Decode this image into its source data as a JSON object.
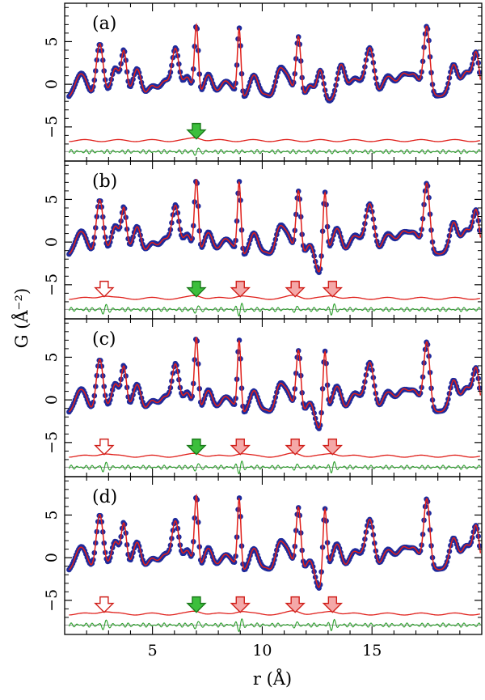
{
  "chart_data": {
    "type": "line",
    "xlabel": "r (Å)",
    "ylabel": "G (Å⁻²)",
    "xlim": [
      1.0,
      20.0
    ],
    "ylim": [
      -9.0,
      9.5
    ],
    "x_ticks": [
      5,
      10,
      15
    ],
    "y_ticks": [
      -5,
      0,
      5
    ],
    "grid": false,
    "series_styles": [
      {
        "role": "observed",
        "color": "#1f2a9c",
        "marker": "circle"
      },
      {
        "role": "calculated",
        "color": "#e0201b",
        "marker": "none"
      },
      {
        "role": "difference",
        "color": "#e0201b",
        "marker": "none"
      },
      {
        "role": "residual",
        "color": "#2ca02c",
        "marker": "none"
      }
    ],
    "panels": [
      {
        "label": "(a)",
        "features": [
          [
            1.8,
            1.3,
            0.25
          ],
          [
            2.6,
            4.4,
            0.16
          ],
          [
            3.3,
            2.2,
            0.18
          ],
          [
            3.7,
            3.5,
            0.12
          ],
          [
            4.3,
            2.0,
            0.18
          ],
          [
            5.0,
            -0.5,
            0.25
          ],
          [
            5.6,
            0.6,
            0.2
          ],
          [
            6.05,
            3.9,
            0.16
          ],
          [
            6.6,
            1.0,
            0.18
          ],
          [
            7.0,
            6.9,
            0.09
          ],
          [
            7.55,
            0.9,
            0.18
          ],
          [
            8.3,
            0.3,
            0.3
          ],
          [
            8.95,
            6.5,
            0.08
          ],
          [
            9.6,
            0.9,
            0.2
          ],
          [
            10.2,
            -1.2,
            0.18
          ],
          [
            10.8,
            1.5,
            0.2
          ],
          [
            11.2,
            0.3,
            0.2
          ],
          [
            11.65,
            5.6,
            0.11
          ],
          [
            12.2,
            -0.4,
            0.16
          ],
          [
            12.65,
            1.8,
            0.15
          ],
          [
            13.1,
            -2.1,
            0.18
          ],
          [
            13.6,
            2.1,
            0.18
          ],
          [
            14.2,
            0.7,
            0.25
          ],
          [
            14.9,
            4.3,
            0.2
          ],
          [
            15.7,
            0.6,
            0.22
          ],
          [
            16.4,
            1.2,
            0.3
          ],
          [
            17.0,
            0.4,
            0.25
          ],
          [
            17.5,
            6.7,
            0.14
          ],
          [
            18.15,
            -1.5,
            0.18
          ],
          [
            18.7,
            2.3,
            0.18
          ],
          [
            19.3,
            1.2,
            0.25
          ],
          [
            19.75,
            3.3,
            0.15
          ]
        ],
        "markers": [
          {
            "x": 7.0,
            "color": "green",
            "fill": "solid"
          }
        ]
      },
      {
        "label": "(b)",
        "features": [
          [
            1.8,
            1.3,
            0.25
          ],
          [
            2.6,
            4.6,
            0.16
          ],
          [
            3.3,
            2.2,
            0.18
          ],
          [
            3.7,
            3.6,
            0.12
          ],
          [
            4.3,
            2.0,
            0.18
          ],
          [
            5.0,
            -0.4,
            0.25
          ],
          [
            5.6,
            0.6,
            0.2
          ],
          [
            6.05,
            4.0,
            0.16
          ],
          [
            6.6,
            1.0,
            0.18
          ],
          [
            7.0,
            7.3,
            0.09
          ],
          [
            7.55,
            0.9,
            0.18
          ],
          [
            8.3,
            0.3,
            0.3
          ],
          [
            8.95,
            7.0,
            0.08
          ],
          [
            9.6,
            0.9,
            0.2
          ],
          [
            10.2,
            -1.2,
            0.18
          ],
          [
            10.8,
            1.5,
            0.2
          ],
          [
            11.2,
            0.3,
            0.2
          ],
          [
            11.65,
            6.0,
            0.11
          ],
          [
            12.2,
            -0.5,
            0.16
          ],
          [
            12.6,
            -3.6,
            0.17
          ],
          [
            12.85,
            6.6,
            0.09
          ],
          [
            13.4,
            1.4,
            0.2
          ],
          [
            14.2,
            0.8,
            0.25
          ],
          [
            14.9,
            4.5,
            0.2
          ],
          [
            15.7,
            0.6,
            0.22
          ],
          [
            16.4,
            1.2,
            0.3
          ],
          [
            17.0,
            0.4,
            0.25
          ],
          [
            17.5,
            6.8,
            0.14
          ],
          [
            18.15,
            -1.5,
            0.18
          ],
          [
            18.7,
            2.3,
            0.18
          ],
          [
            19.3,
            1.2,
            0.25
          ],
          [
            19.75,
            3.3,
            0.15
          ]
        ],
        "markers": [
          {
            "x": 2.8,
            "color": "red",
            "fill": "hollow"
          },
          {
            "x": 7.0,
            "color": "green",
            "fill": "solid"
          },
          {
            "x": 9.0,
            "color": "red",
            "fill": "light"
          },
          {
            "x": 11.5,
            "color": "red",
            "fill": "light"
          },
          {
            "x": 13.2,
            "color": "red",
            "fill": "light"
          }
        ]
      },
      {
        "label": "(c)",
        "features": [
          [
            1.8,
            1.3,
            0.25
          ],
          [
            2.6,
            4.4,
            0.16
          ],
          [
            3.3,
            2.2,
            0.18
          ],
          [
            3.7,
            3.5,
            0.12
          ],
          [
            4.3,
            2.0,
            0.18
          ],
          [
            5.0,
            -0.4,
            0.25
          ],
          [
            5.6,
            0.6,
            0.2
          ],
          [
            6.05,
            3.9,
            0.16
          ],
          [
            6.6,
            1.0,
            0.18
          ],
          [
            7.0,
            7.3,
            0.09
          ],
          [
            7.55,
            0.9,
            0.18
          ],
          [
            8.3,
            0.3,
            0.3
          ],
          [
            8.95,
            6.9,
            0.08
          ],
          [
            9.6,
            0.9,
            0.2
          ],
          [
            10.2,
            -1.2,
            0.18
          ],
          [
            10.8,
            1.5,
            0.2
          ],
          [
            11.2,
            0.3,
            0.2
          ],
          [
            11.65,
            5.8,
            0.11
          ],
          [
            12.2,
            -0.5,
            0.16
          ],
          [
            12.6,
            -3.4,
            0.17
          ],
          [
            12.85,
            6.4,
            0.09
          ],
          [
            13.4,
            1.4,
            0.2
          ],
          [
            14.2,
            0.8,
            0.25
          ],
          [
            14.9,
            4.4,
            0.2
          ],
          [
            15.7,
            0.6,
            0.22
          ],
          [
            16.4,
            1.2,
            0.3
          ],
          [
            17.0,
            0.4,
            0.25
          ],
          [
            17.5,
            6.7,
            0.14
          ],
          [
            18.15,
            -1.5,
            0.18
          ],
          [
            18.7,
            2.3,
            0.18
          ],
          [
            19.3,
            1.2,
            0.25
          ],
          [
            19.75,
            3.3,
            0.15
          ]
        ],
        "markers": [
          {
            "x": 2.8,
            "color": "red",
            "fill": "hollow"
          },
          {
            "x": 7.0,
            "color": "green",
            "fill": "solid"
          },
          {
            "x": 9.0,
            "color": "red",
            "fill": "light"
          },
          {
            "x": 11.5,
            "color": "red",
            "fill": "light"
          },
          {
            "x": 13.2,
            "color": "red",
            "fill": "light"
          }
        ]
      },
      {
        "label": "(d)",
        "features": [
          [
            1.8,
            1.3,
            0.25
          ],
          [
            2.6,
            4.7,
            0.16
          ],
          [
            3.3,
            2.2,
            0.18
          ],
          [
            3.7,
            3.6,
            0.12
          ],
          [
            4.3,
            2.0,
            0.18
          ],
          [
            5.0,
            -0.4,
            0.25
          ],
          [
            5.6,
            0.6,
            0.2
          ],
          [
            6.05,
            4.0,
            0.16
          ],
          [
            6.6,
            1.0,
            0.18
          ],
          [
            7.0,
            7.2,
            0.09
          ],
          [
            7.55,
            0.9,
            0.18
          ],
          [
            8.3,
            0.3,
            0.3
          ],
          [
            8.95,
            6.9,
            0.08
          ],
          [
            9.6,
            0.9,
            0.2
          ],
          [
            10.2,
            -1.2,
            0.18
          ],
          [
            10.8,
            1.5,
            0.2
          ],
          [
            11.2,
            0.3,
            0.2
          ],
          [
            11.65,
            5.9,
            0.11
          ],
          [
            12.2,
            -0.5,
            0.16
          ],
          [
            12.6,
            -3.6,
            0.17
          ],
          [
            12.85,
            6.5,
            0.09
          ],
          [
            13.4,
            1.4,
            0.2
          ],
          [
            14.2,
            0.8,
            0.25
          ],
          [
            14.9,
            4.5,
            0.2
          ],
          [
            15.7,
            0.6,
            0.22
          ],
          [
            16.4,
            1.2,
            0.3
          ],
          [
            17.0,
            0.4,
            0.25
          ],
          [
            17.5,
            6.8,
            0.14
          ],
          [
            18.15,
            -1.5,
            0.18
          ],
          [
            18.7,
            2.3,
            0.18
          ],
          [
            19.3,
            1.2,
            0.25
          ],
          [
            19.75,
            3.3,
            0.15
          ]
        ],
        "markers": [
          {
            "x": 2.8,
            "color": "red",
            "fill": "hollow"
          },
          {
            "x": 7.0,
            "color": "green",
            "fill": "solid"
          },
          {
            "x": 9.0,
            "color": "red",
            "fill": "light"
          },
          {
            "x": 11.5,
            "color": "red",
            "fill": "light"
          },
          {
            "x": 13.2,
            "color": "red",
            "fill": "light"
          }
        ]
      }
    ]
  }
}
